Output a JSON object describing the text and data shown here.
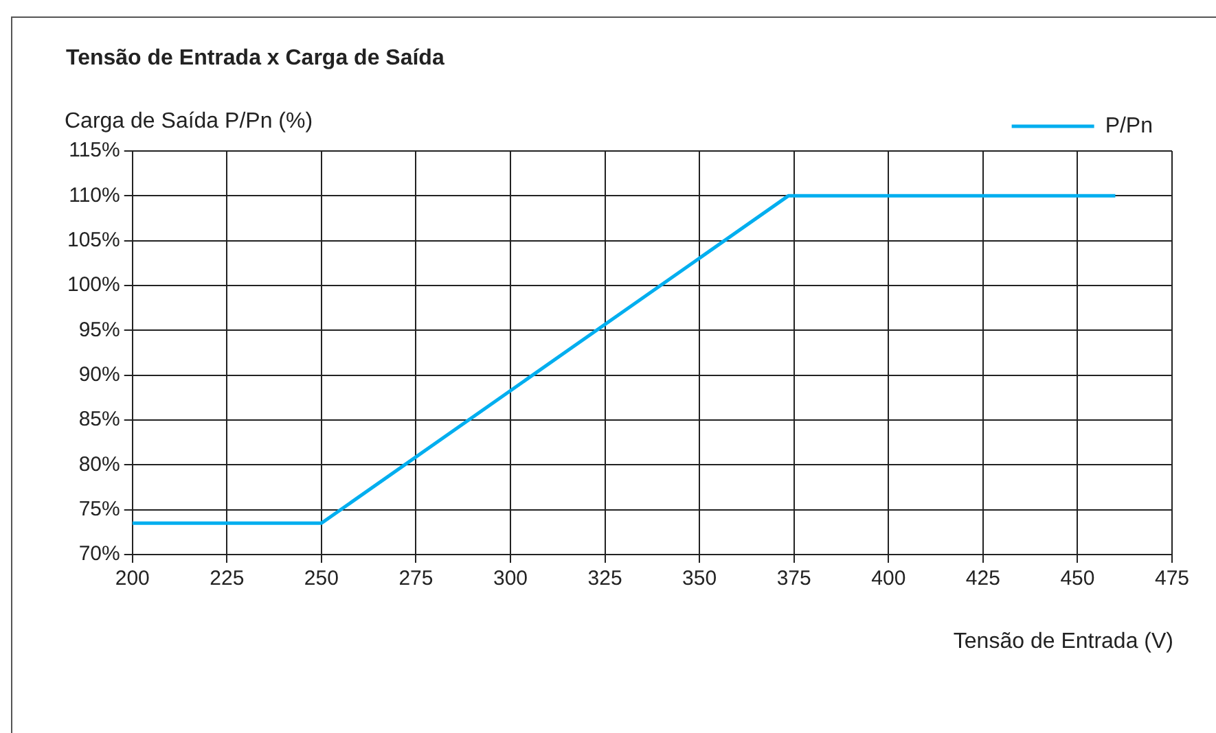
{
  "chart_data": {
    "type": "line",
    "title": "Tensão de Entrada x Carga de Saída",
    "xlabel": "Tensão de Entrada (V)",
    "ylabel": "Carga de Saída P/Pn (%)",
    "x": [
      200,
      250,
      373.5,
      460
    ],
    "series": [
      {
        "name": "P/Pn",
        "color": "#00aeef",
        "values": [
          73.5,
          73.5,
          110,
          110
        ]
      }
    ],
    "xlim": [
      200,
      475
    ],
    "xticks": [
      200,
      225,
      250,
      275,
      300,
      325,
      350,
      375,
      400,
      425,
      450,
      475
    ],
    "ylim": [
      70,
      115
    ],
    "yticks": [
      {
        "value": 70,
        "label": "70%"
      },
      {
        "value": 75,
        "label": "75%"
      },
      {
        "value": 80,
        "label": "80%"
      },
      {
        "value": 85,
        "label": "85%"
      },
      {
        "value": 90,
        "label": "90%"
      },
      {
        "value": 95,
        "label": "95%"
      },
      {
        "value": 100,
        "label": "100%"
      },
      {
        "value": 105,
        "label": "105%"
      },
      {
        "value": 110,
        "label": "110%"
      },
      {
        "value": 115,
        "label": "115%"
      }
    ],
    "grid": true,
    "legend": "top right",
    "marker": "none",
    "line_style": "solid"
  }
}
